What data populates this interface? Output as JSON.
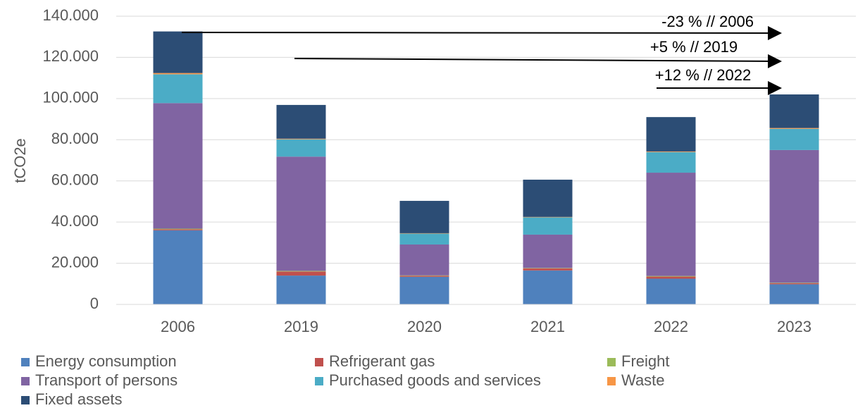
{
  "chart_data": {
    "type": "stacked_bar",
    "ylabel": "tCO2e",
    "categories": [
      "2006",
      "2019",
      "2020",
      "2021",
      "2022",
      "2023"
    ],
    "series": [
      {
        "name": "Energy consumption",
        "color": "#4f81bd",
        "values": [
          36000,
          14000,
          13400,
          16500,
          12500,
          9800
        ]
      },
      {
        "name": "Refrigerant gas",
        "color": "#c0504d",
        "values": [
          500,
          2000,
          500,
          1000,
          1000,
          500
        ]
      },
      {
        "name": "Freight",
        "color": "#9bbb59",
        "values": [
          300,
          300,
          200,
          200,
          300,
          200
        ]
      },
      {
        "name": "Transport of persons",
        "color": "#8064a2",
        "values": [
          61000,
          55500,
          15000,
          16200,
          50200,
          64500
        ]
      },
      {
        "name": "Purchased goods and services",
        "color": "#4bacc6",
        "values": [
          14000,
          8400,
          5300,
          8400,
          10000,
          10300
        ]
      },
      {
        "name": "Waste",
        "color": "#f79646",
        "values": [
          600,
          300,
          200,
          200,
          300,
          400
        ]
      },
      {
        "name": "Fixed assets",
        "color": "#2c4d75",
        "values": [
          20200,
          16400,
          15700,
          18100,
          16700,
          16300
        ]
      }
    ],
    "ylim": [
      0,
      140000
    ],
    "yticks": [
      0,
      {
        "value": 20000,
        "label": "20.000"
      },
      {
        "value": 40000,
        "label": "40.000"
      },
      {
        "value": 60000,
        "label": "60.000"
      },
      {
        "value": 80000,
        "label": "80.000"
      },
      {
        "value": 100000,
        "label": "100.000"
      },
      {
        "value": 120000,
        "label": "120.000"
      },
      {
        "value": 140000,
        "label": "140.000"
      }
    ],
    "grid": true,
    "annotations": [
      "-23 % // 2006",
      "+5 % // 2019",
      "+12 % // 2022"
    ]
  }
}
